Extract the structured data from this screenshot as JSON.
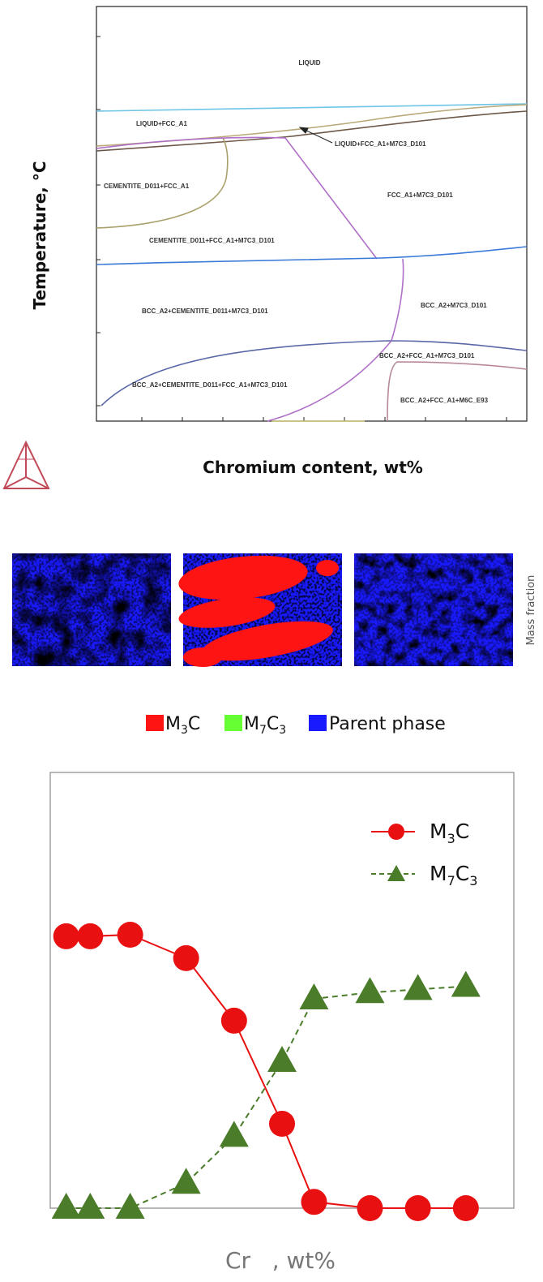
{
  "phase_diagram": {
    "ylabel": "Temperature, °C",
    "xlabel": "Chromium content, wt%",
    "logo_icon": "thermo-calc-triangle-logo",
    "regions": [
      "LIQUID",
      "LIQUID+FCC_A1",
      "LIQUID+FCC_A1+M7C3_D101",
      "CEMENTITE_D011+FCC_A1",
      "FCC_A1+M7C3_D101",
      "CEMENTITE_D011+FCC_A1+M7C3_D101",
      "BCC_A2+CEMENTITE_D011+M7C3_D101",
      "BCC_A2+M7C3_D101",
      "BCC_A2+FCC_A1+M7C3_D101",
      "BCC_A2+CEMENTITE_D011+FCC_A1+M7C3_D101",
      "BCC_A2+FCC_A1+M6C_E93"
    ]
  },
  "maps": {
    "side_label": "Mass fraction",
    "legend": [
      {
        "base": "M",
        "sub1": "3",
        "tail": "C",
        "sub2": "",
        "color": "#ff1414"
      },
      {
        "base": "M",
        "sub1": "7",
        "tail": "C",
        "sub2": "3",
        "color": "#66ff33"
      },
      {
        "base": "Parent phase",
        "sub1": "",
        "tail": "",
        "sub2": "",
        "color": "#1a1aff"
      }
    ]
  },
  "chart_data": {
    "type": "line",
    "xlabel": "Cr   , wt%",
    "ylabel": "",
    "x": [
      0.2,
      0.5,
      1.0,
      1.7,
      2.3,
      2.9,
      3.3,
      4.0,
      4.6,
      5.2
    ],
    "xlim": [
      0,
      5.8
    ],
    "ylim": [
      0,
      1.0
    ],
    "legend_position": "top-right",
    "series": [
      {
        "name": "M3C",
        "name_base": "M",
        "name_sub1": "3",
        "name_tail": "C",
        "name_sub2": "",
        "color": "#e81010",
        "marker": "circle",
        "line": "solid",
        "values": [
          0.87,
          0.87,
          0.875,
          0.8,
          0.6,
          0.27,
          0.02,
          0.0,
          0.0,
          0.0
        ]
      },
      {
        "name": "M7C3",
        "name_base": "M",
        "name_sub1": "7",
        "name_tail": "C",
        "name_sub2": "3",
        "color": "#4a7c2a",
        "marker": "triangle",
        "line": "dashed",
        "values": [
          0.0,
          0.0,
          0.0,
          0.08,
          0.23,
          0.47,
          0.67,
          0.69,
          0.7,
          0.71
        ]
      }
    ]
  }
}
